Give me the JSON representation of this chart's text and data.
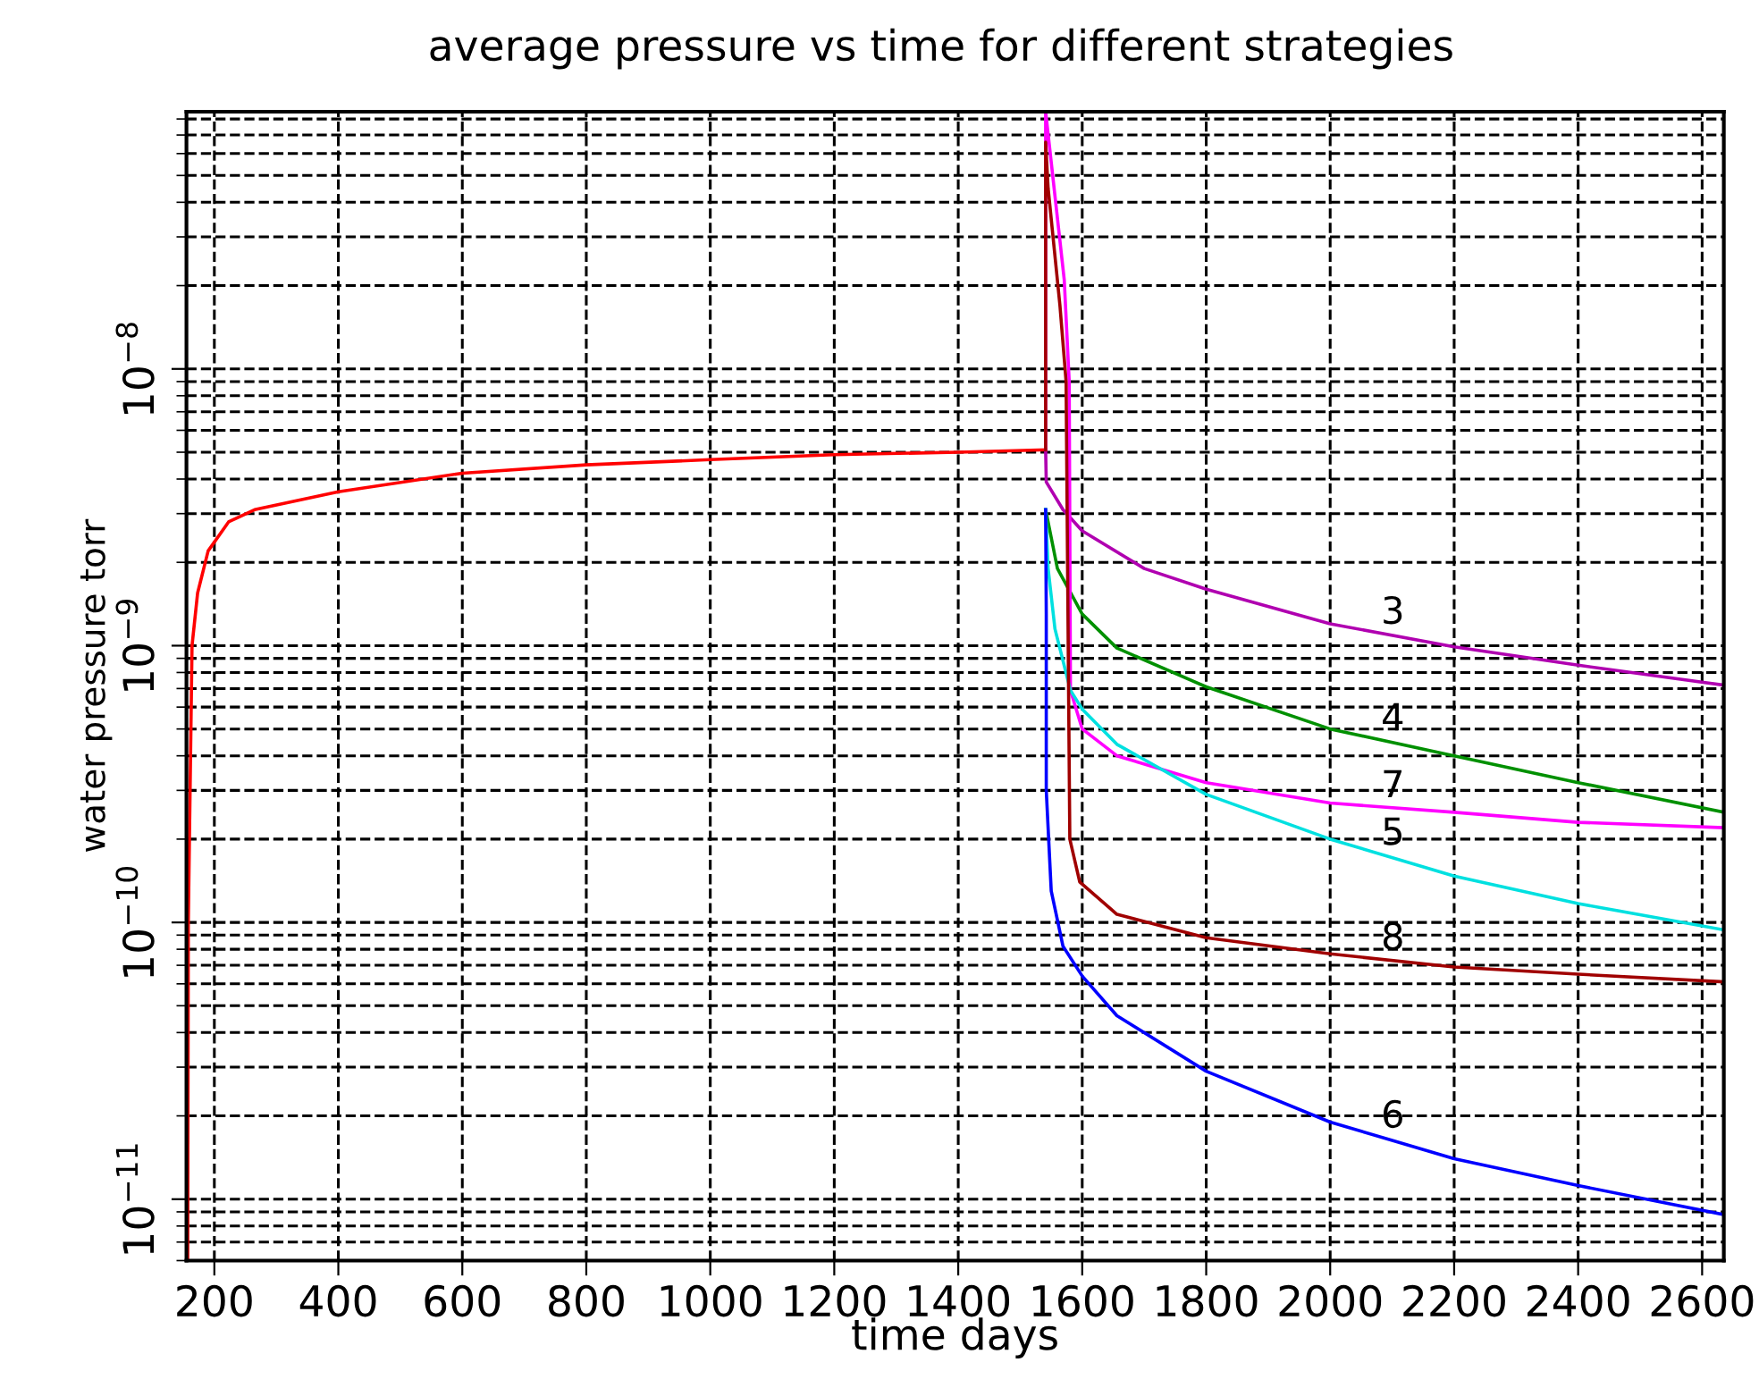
{
  "chart_data": {
    "type": "line",
    "title": "average pressure vs time for different strategies",
    "xlabel": "time days",
    "ylabel": "water pressure torr",
    "log": "y",
    "grid": true,
    "legend": false,
    "marker": "none",
    "line_style": "solid",
    "xlim": [
      155,
      2635
    ],
    "xticks": [
      200,
      400,
      600,
      800,
      1000,
      1200,
      1400,
      1600,
      1800,
      2000,
      2200,
      2400,
      2600
    ],
    "ylim": [
      6e-12,
      8.5e-08
    ],
    "yticks": [
      {
        "value": 1e-11,
        "label": "10$^{−11}$"
      },
      {
        "value": 1e-10,
        "label": "10$^{−10}$"
      },
      {
        "value": 1e-09,
        "label": "10$^{−9}$"
      },
      {
        "value": 1e-08,
        "label": "10$^{−8}$"
      }
    ],
    "series": [
      {
        "color": "#ff0000",
        "x": [
          157,
          158,
          164,
          173,
          190,
          223,
          265,
          400,
          600,
          800,
          1000,
          1200,
          1400,
          1540
        ],
        "values": [
          6e-12,
          1e-10,
          1e-09,
          1.55e-09,
          2.2e-09,
          2.8e-09,
          3.1e-09,
          3.6e-09,
          4.2e-09,
          4.5e-09,
          4.7e-09,
          4.9e-09,
          5e-09,
          5.1e-09
        ]
      },
      {
        "name": "3",
        "color": "#b000b0",
        "x": [
          1541,
          1542,
          1569,
          1600,
          1700,
          1800,
          2000,
          2200,
          2400,
          2635
        ],
        "values": [
          5.1e-09,
          3.9e-09,
          3.1e-09,
          2.6e-09,
          1.9e-09,
          1.6e-09,
          1.2e-09,
          9.9e-10,
          8.5e-10,
          7.2e-10
        ]
      },
      {
        "name": "4",
        "color": "#009000",
        "x": [
          1541,
          1560,
          1600,
          1656,
          1800,
          2000,
          2200,
          2400,
          2635
        ],
        "values": [
          3.1e-09,
          1.9e-09,
          1.3e-09,
          9.8e-10,
          7.1e-10,
          5e-10,
          4e-10,
          3.2e-10,
          2.5e-10
        ]
      },
      {
        "name": "7",
        "color": "#ff00ff",
        "x": [
          1541,
          1541,
          1571,
          1579,
          1581,
          1600,
          1656,
          1800,
          2000,
          2200,
          2400,
          2635
        ],
        "values": [
          5.1e-09,
          8.5e-08,
          2.1e-08,
          9e-09,
          6.9e-10,
          5e-10,
          4e-10,
          3.2e-10,
          2.7e-10,
          2.5e-10,
          2.3e-10,
          2.2e-10
        ]
      },
      {
        "name": "5",
        "color": "#00e0e0",
        "x": [
          1541,
          1545,
          1556,
          1581,
          1600,
          1656,
          1800,
          2000,
          2200,
          2400,
          2635
        ],
        "values": [
          3.1e-09,
          1.9e-09,
          1.15e-09,
          6.9e-10,
          5.9e-10,
          4.4e-10,
          2.9e-10,
          2e-10,
          1.47e-10,
          1.17e-10,
          9.4e-11
        ]
      },
      {
        "name": "8",
        "color": "#a00000",
        "x": [
          1541,
          1541,
          1545,
          1564,
          1574,
          1578,
          1580,
          1596,
          1656,
          1800,
          2000,
          2200,
          2400,
          2635
        ],
        "values": [
          5.1e-09,
          6.6e-08,
          4.5e-08,
          1.7e-08,
          9e-09,
          6.9e-10,
          2e-10,
          1.4e-10,
          1.07e-10,
          8.8e-11,
          7.7e-11,
          6.9e-11,
          6.5e-11,
          6.1e-11
        ]
      },
      {
        "name": "6",
        "color": "#0000ff",
        "x": [
          1541,
          1542,
          1542,
          1550,
          1569,
          1600,
          1656,
          1800,
          2000,
          2200,
          2400,
          2635
        ],
        "values": [
          3.1e-09,
          1.3e-09,
          3e-10,
          1.3e-10,
          8.2e-11,
          6.4e-11,
          4.6e-11,
          2.9e-11,
          1.9e-11,
          1.4e-11,
          1.12e-11,
          8.8e-12
        ]
      }
    ]
  }
}
